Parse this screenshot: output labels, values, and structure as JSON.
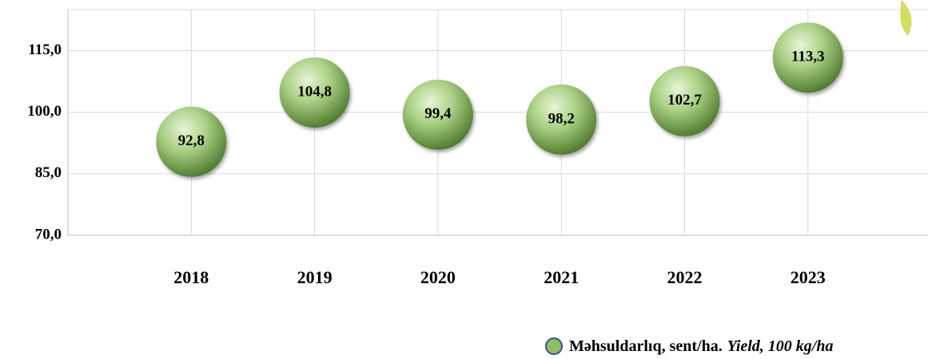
{
  "chart_data": {
    "type": "scatter",
    "categories": [
      "2018",
      "2019",
      "2020",
      "2021",
      "2022",
      "2023"
    ],
    "series": [
      {
        "name": "Məhsuldarlıq, sent/ha.",
        "subname": "Yield, 100 kg/ha",
        "color": "#8fbf5f",
        "values": [
          92.8,
          104.8,
          99.4,
          98.2,
          102.7,
          113.3
        ],
        "value_labels": [
          "92,8",
          "104,8",
          "99,4",
          "98,2",
          "102,7",
          "113,3"
        ]
      }
    ],
    "ylim": [
      70,
      125
    ],
    "yticks": [
      {
        "value": 70,
        "label": "70,0"
      },
      {
        "value": 85,
        "label": "85,0"
      },
      {
        "value": 100,
        "label": "100,0"
      },
      {
        "value": 115,
        "label": "115,0"
      }
    ],
    "grid": true
  }
}
